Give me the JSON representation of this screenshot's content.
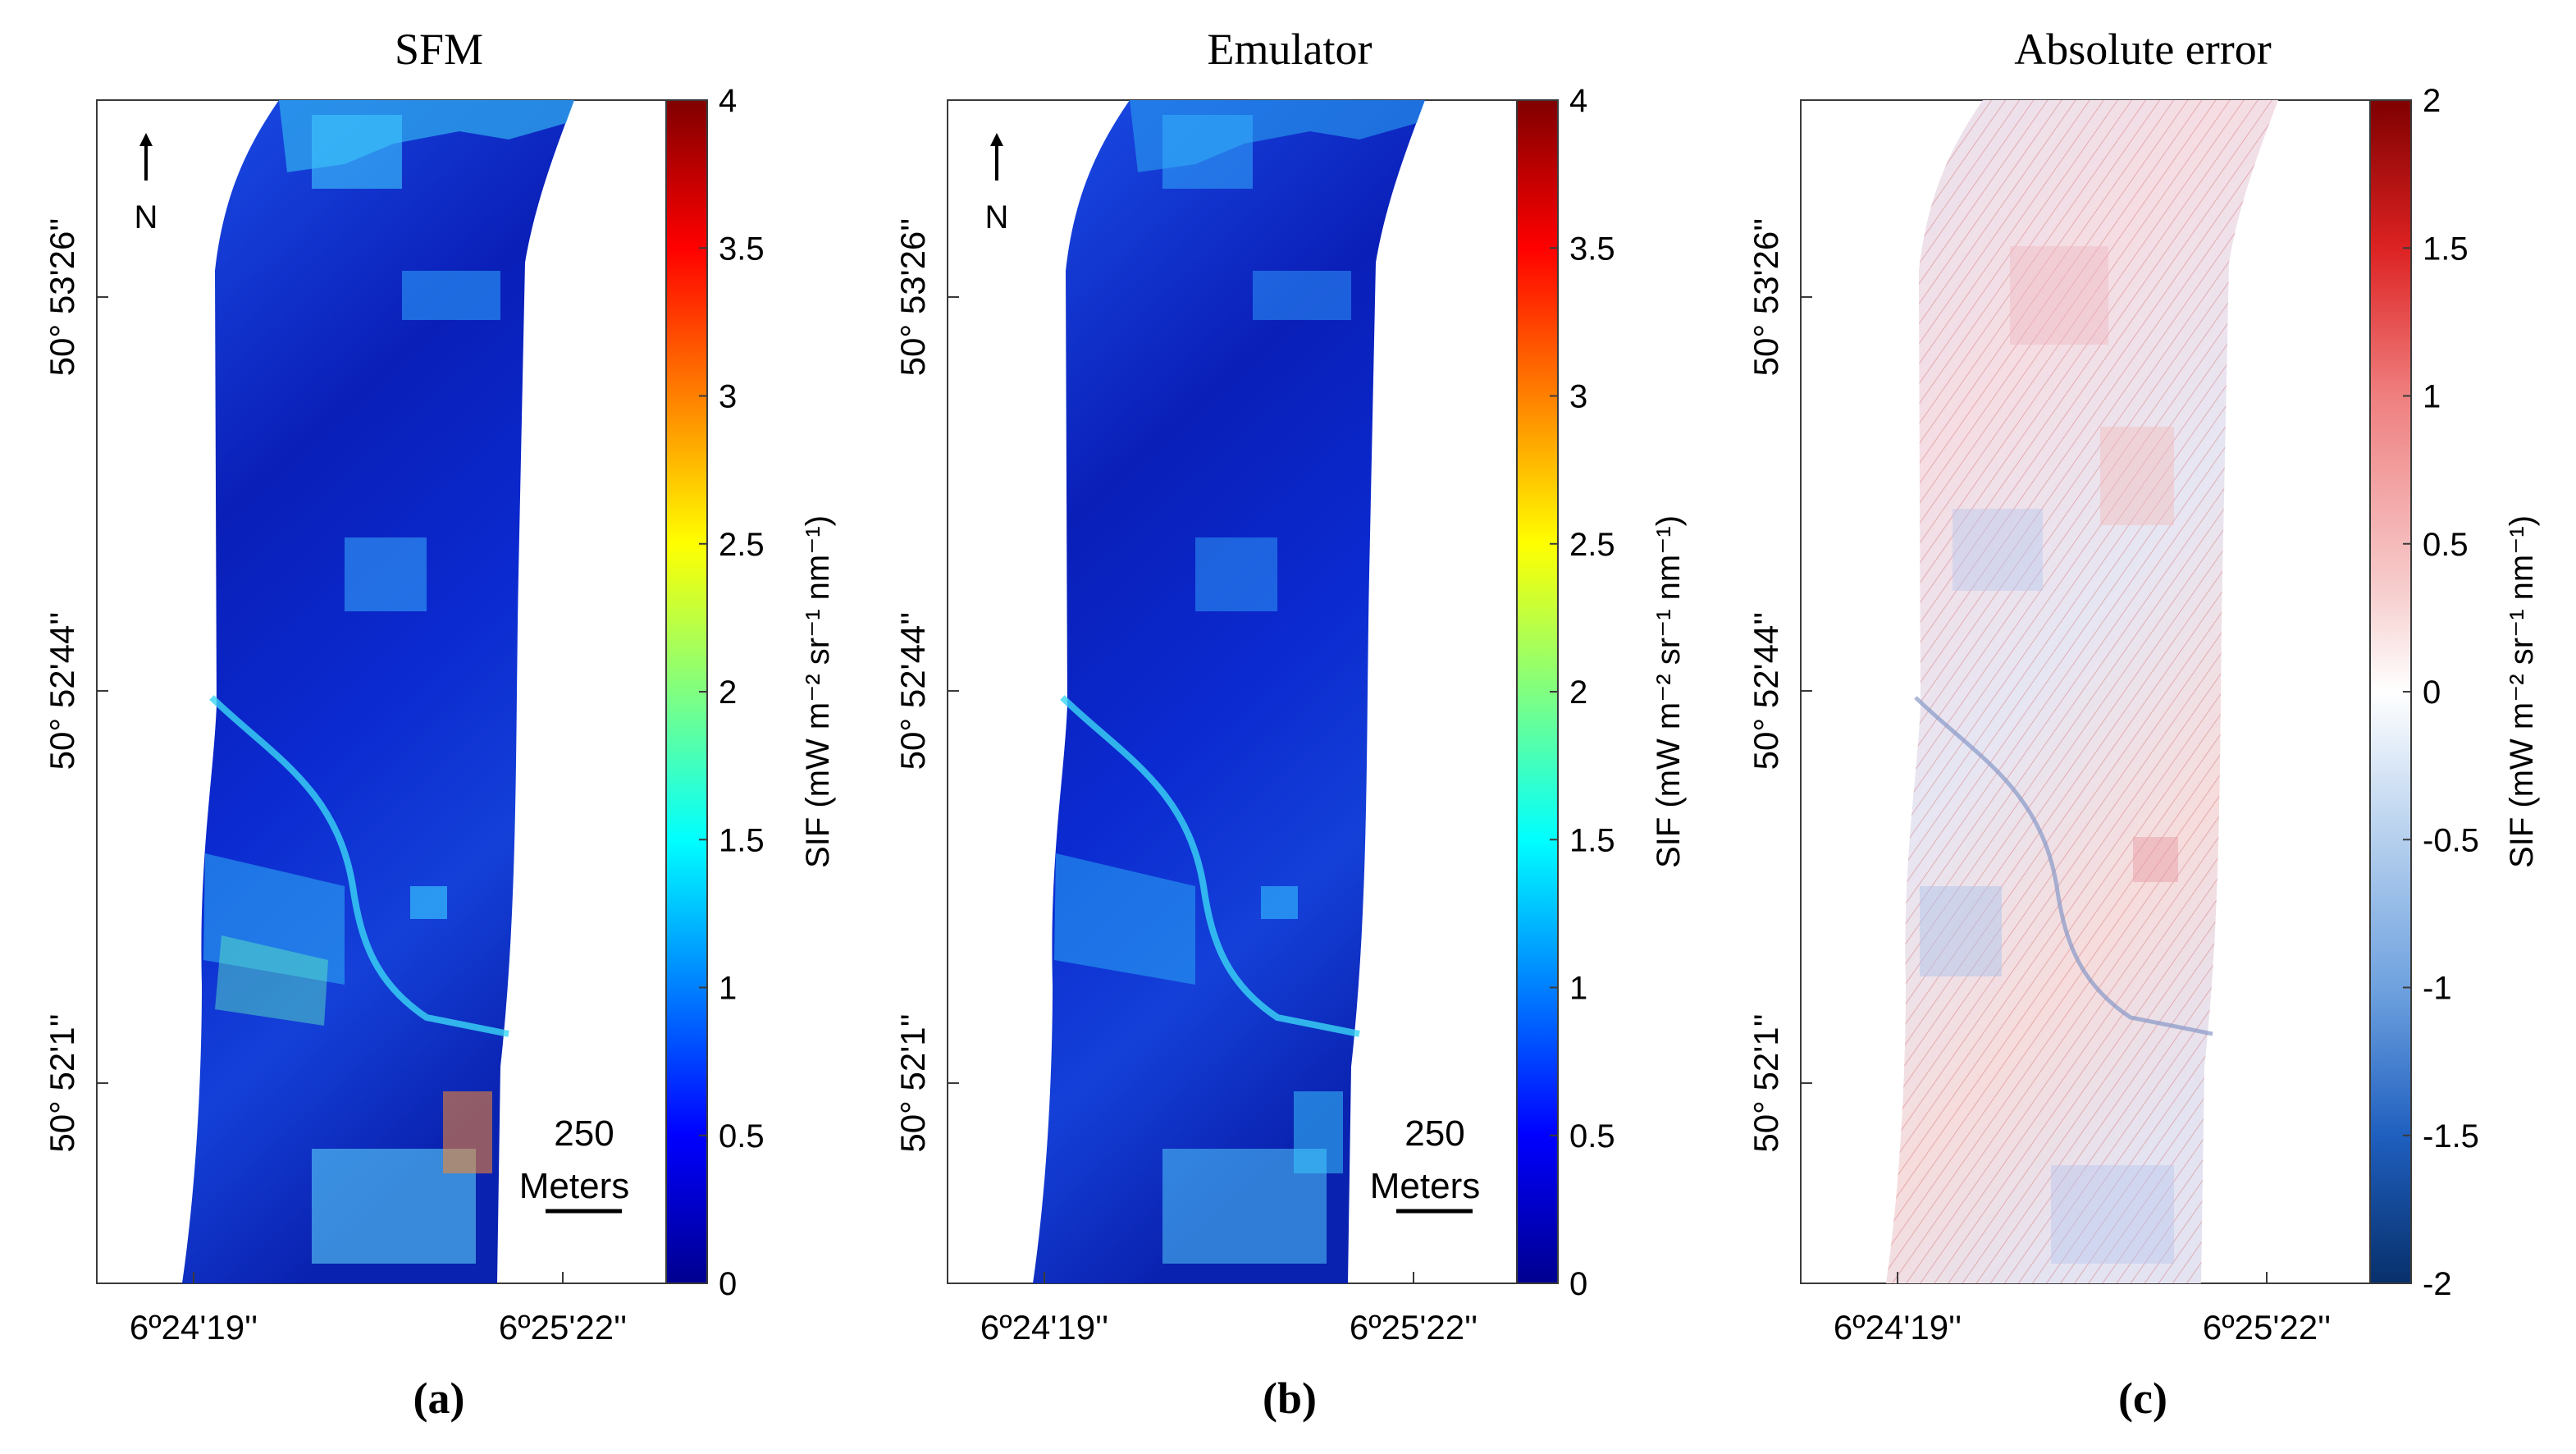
{
  "chart_data": [
    {
      "type": "heatmap",
      "title": "SFM",
      "panel_label": "(a)",
      "x_tick_labels": [
        "6º24'19''",
        "6º25'22''"
      ],
      "y_tick_labels": [
        "50° 53'26''",
        "50° 52'44''",
        "50° 52'1''"
      ],
      "colormap": "jet",
      "colorbar": {
        "label": "SIF (mW m⁻² sr⁻¹ nm⁻¹)",
        "range": [
          0,
          4
        ],
        "ticks": [
          "0",
          "0.5",
          "1",
          "1.5",
          "2",
          "2.5",
          "3",
          "3.5",
          "4"
        ]
      },
      "north_arrow": "N",
      "scale_bar": {
        "value": "250",
        "unit": "Meters"
      }
    },
    {
      "type": "heatmap",
      "title": "Emulator",
      "panel_label": "(b)",
      "x_tick_labels": [
        "6º24'19''",
        "6º25'22''"
      ],
      "y_tick_labels": [
        "50° 53'26''",
        "50° 52'44''",
        "50° 52'1''"
      ],
      "colormap": "jet",
      "colorbar": {
        "label": "SIF (mW m⁻² sr⁻¹ nm⁻¹)",
        "range": [
          0,
          4
        ],
        "ticks": [
          "0",
          "0.5",
          "1",
          "1.5",
          "2",
          "2.5",
          "3",
          "3.5",
          "4"
        ]
      },
      "north_arrow": "N",
      "scale_bar": {
        "value": "250",
        "unit": "Meters"
      }
    },
    {
      "type": "heatmap",
      "title": "Absolute error",
      "panel_label": "(c)",
      "x_tick_labels": [
        "6º24'19''",
        "6º25'22''"
      ],
      "y_tick_labels": [
        "50° 53'26''",
        "50° 52'44''",
        "50° 52'1''"
      ],
      "colormap": "blue-white-red",
      "colorbar": {
        "label": "SIF (mW m⁻² sr⁻¹ nm⁻¹)",
        "range": [
          -2,
          2
        ],
        "ticks": [
          "-2",
          "-1.5",
          "-1",
          "-0.5",
          "0",
          "0.5",
          "1",
          "1.5",
          "2"
        ]
      }
    }
  ],
  "colors": {
    "jet": [
      "#00008f",
      "#0000ff",
      "#0080ff",
      "#00ffff",
      "#80ff80",
      "#ffff00",
      "#ff8000",
      "#ff0000",
      "#800000"
    ],
    "diverging": [
      "#08306b",
      "#1f5fbf",
      "#6fa2df",
      "#cfe0f3",
      "#ffffff",
      "#f7d0d0",
      "#ef7f7f",
      "#dd2222",
      "#7f0000"
    ],
    "swath_low": "#0a1a9e",
    "swath_mid": "#1a45e8",
    "swath_high": "#30d0ff",
    "error_base": "#f3e6ec"
  }
}
